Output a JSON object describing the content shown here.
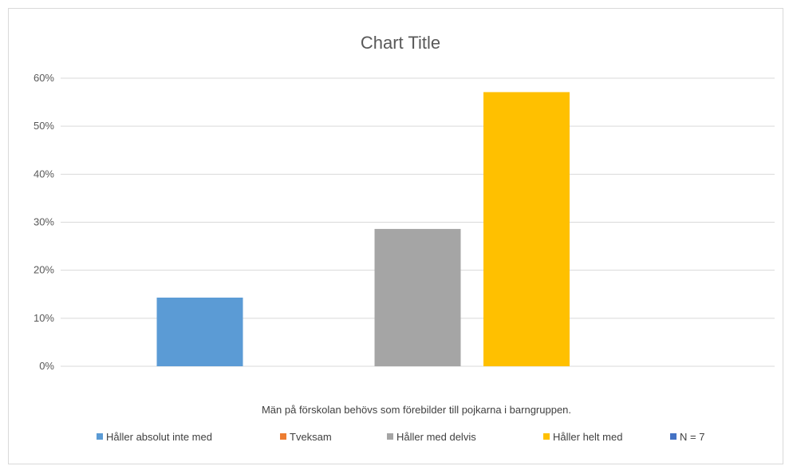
{
  "chart_data": {
    "type": "bar",
    "title": "Chart Title",
    "xlabel": "Män på förskolan behövs som förebilder till pojkarna i barngruppen.",
    "ylabel": "",
    "ylim": [
      0,
      0.6
    ],
    "yticks": [
      {
        "value": 0.0,
        "label": "0%"
      },
      {
        "value": 0.1,
        "label": "10%"
      },
      {
        "value": 0.2,
        "label": "20%"
      },
      {
        "value": 0.3,
        "label": "30%"
      },
      {
        "value": 0.4,
        "label": "40%"
      },
      {
        "value": 0.5,
        "label": "50%"
      },
      {
        "value": 0.6,
        "label": "60%"
      }
    ],
    "grid": true,
    "legend_position": "bottom",
    "series": [
      {
        "name": "Håller absolut inte med",
        "value": 0.143,
        "color": "#5b9bd5"
      },
      {
        "name": "Tveksam",
        "value": 0.0,
        "color": "#ed7d31"
      },
      {
        "name": "Håller med delvis",
        "value": 0.286,
        "color": "#a5a5a5"
      },
      {
        "name": "Håller helt med",
        "value": 0.571,
        "color": "#ffc000"
      },
      {
        "name": "N = 7",
        "value": 0.0,
        "color": "#4472c4"
      }
    ]
  }
}
